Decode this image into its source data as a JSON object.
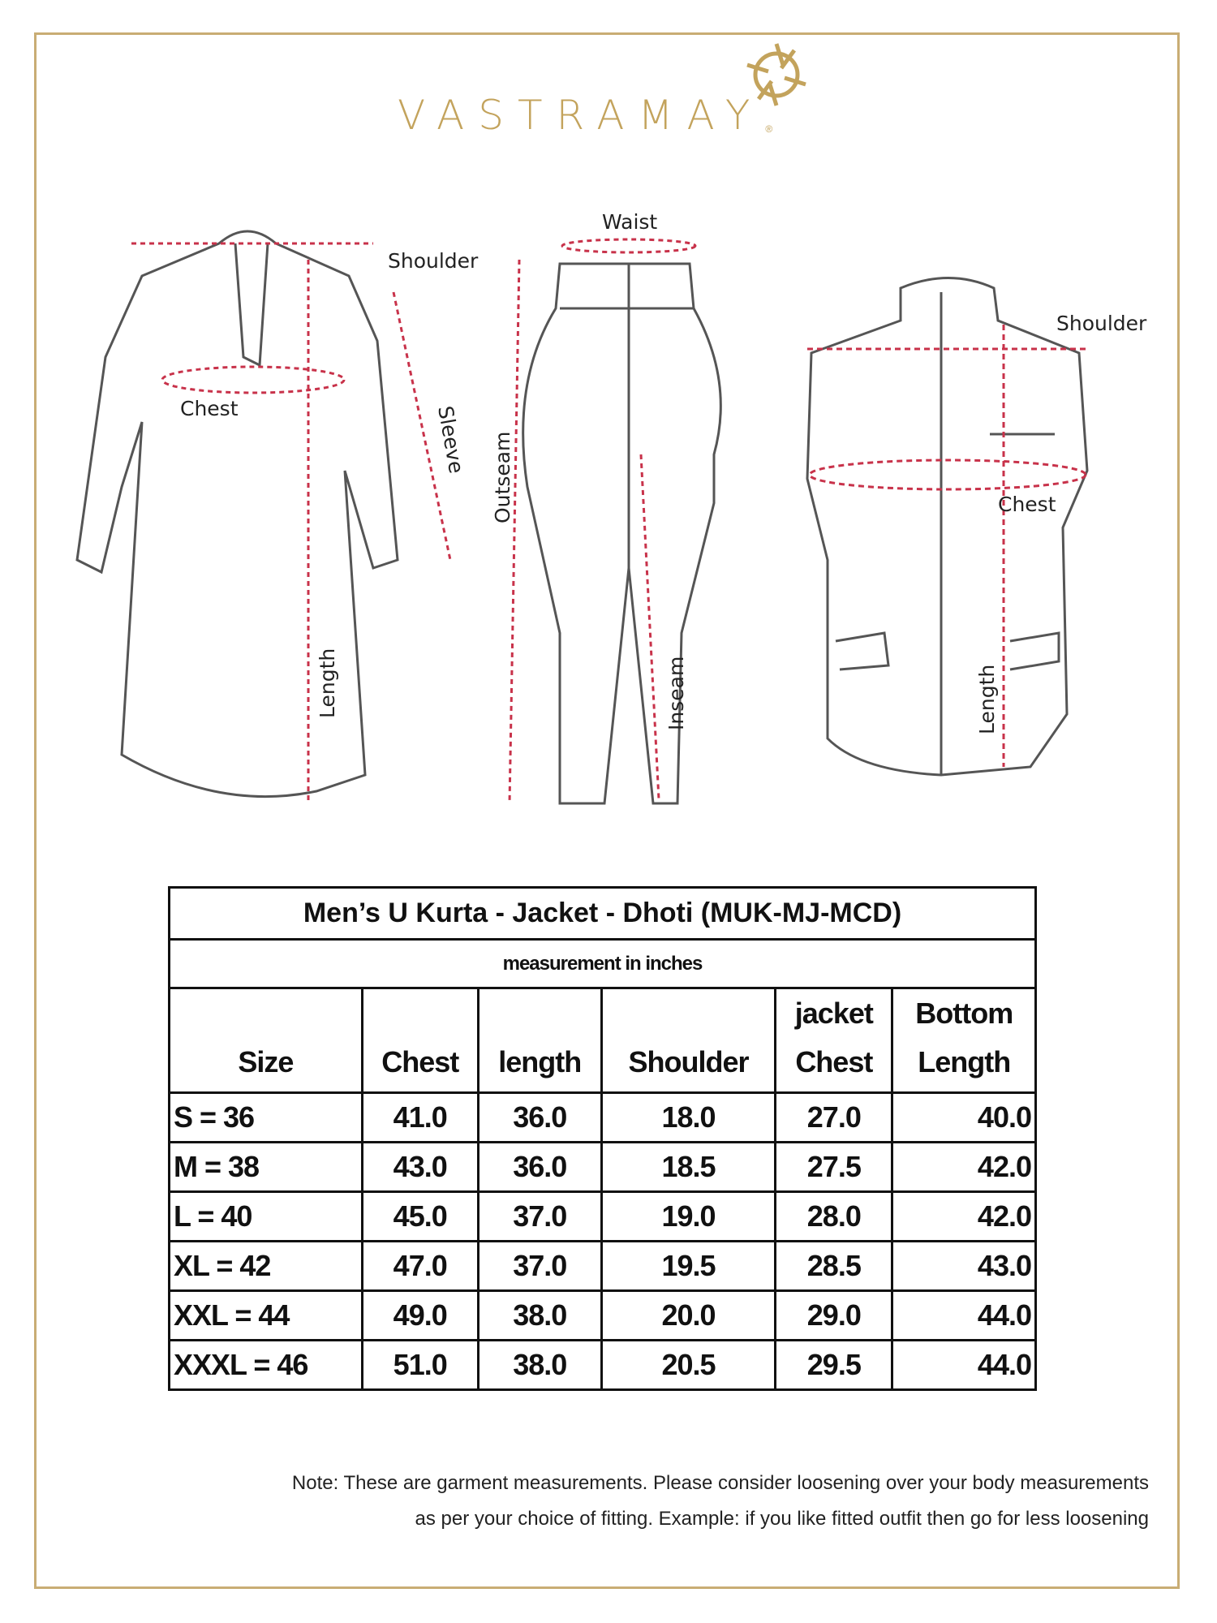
{
  "brand": {
    "name": "VASTRAMAY",
    "registered_mark": "®",
    "color": "#c3a35c"
  },
  "diagram": {
    "kurta_labels": {
      "shoulder": "Shoulder",
      "chest": "Chest",
      "sleeve": "Sleeve",
      "length": "Length"
    },
    "dhoti_labels": {
      "waist": "Waist",
      "outseam": "Outseam",
      "inseam": "Inseam"
    },
    "jacket_labels": {
      "shoulder": "Shoulder",
      "chest": "Chest",
      "length": "Length"
    },
    "measure_line_color": "#c8324a"
  },
  "table": {
    "title": "Men’s U Kurta - Jacket - Dhoti (MUK-MJ-MCD)",
    "unit": "measurement in inches",
    "headers": [
      [
        "",
        "Size"
      ],
      [
        "",
        "Chest"
      ],
      [
        "",
        "length"
      ],
      [
        "",
        "Shoulder"
      ],
      [
        "jacket",
        "Chest"
      ],
      [
        "Bottom",
        "Length"
      ]
    ],
    "rows": [
      [
        "S = 36",
        "41.0",
        "36.0",
        "18.0",
        "27.0",
        "40.0"
      ],
      [
        "M = 38",
        "43.0",
        "36.0",
        "18.5",
        "27.5",
        "42.0"
      ],
      [
        "L = 40",
        "45.0",
        "37.0",
        "19.0",
        "28.0",
        "42.0"
      ],
      [
        "XL = 42",
        "47.0",
        "37.0",
        "19.5",
        "28.5",
        "43.0"
      ],
      [
        "XXL = 44",
        "49.0",
        "38.0",
        "20.0",
        "29.0",
        "44.0"
      ],
      [
        "XXXL = 46",
        "51.0",
        "38.0",
        "20.5",
        "29.5",
        "44.0"
      ]
    ]
  },
  "note": {
    "line1": "Note: These are garment measurements. Please consider loosening over your body measurements",
    "line2": "as per your choice of fitting. Example: if you like fitted outfit then go for less loosening"
  }
}
